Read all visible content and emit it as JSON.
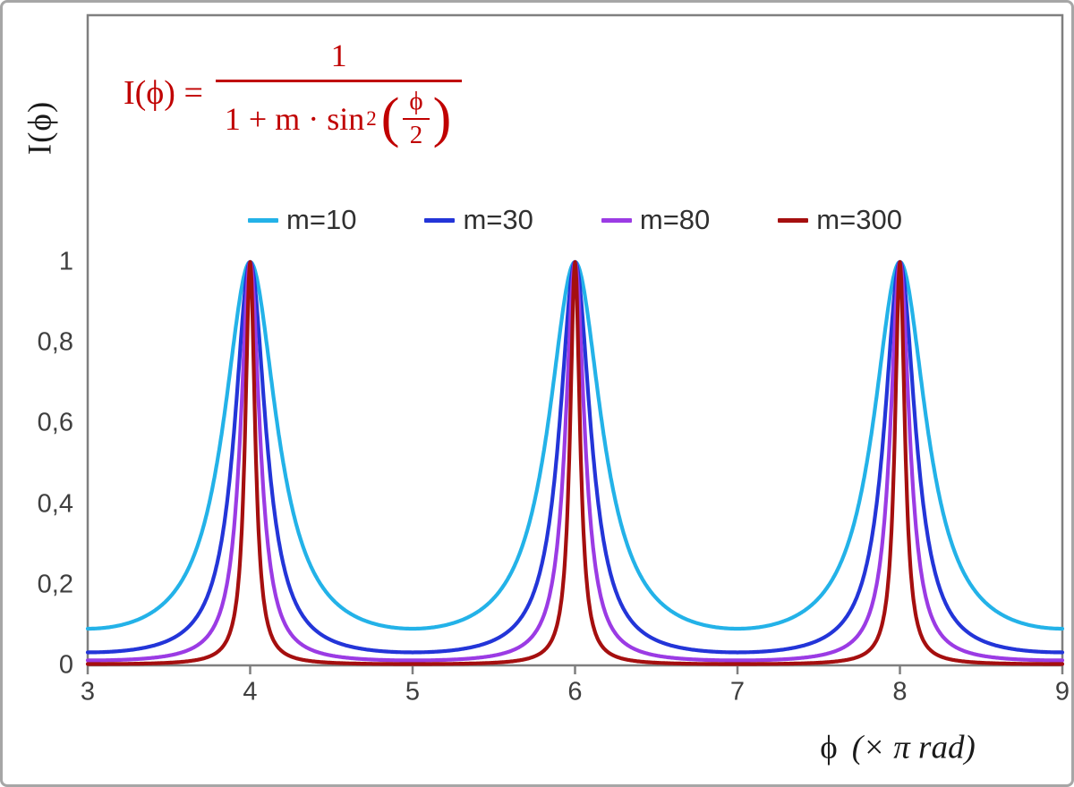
{
  "axes_color": "#7f7f7f",
  "formula": {
    "full_text": "I(ϕ) = 1 / (1 + m·sin²(ϕ/2))",
    "lhs": "I(ϕ) =",
    "numerator": "1",
    "denominator_prefix": "1 + m · sin",
    "exponent": "2",
    "open_paren": "(",
    "inner_numerator": "ϕ",
    "inner_denominator": "2",
    "close_paren": ")",
    "color": "#c00000"
  },
  "chart_data": {
    "type": "line",
    "function": "I(phi) = 1 / (1 + m * sin^2(phi/2)), phi in units of pi rad",
    "x_range": [
      3,
      9
    ],
    "y_axis_labeled_range": [
      0,
      1
    ],
    "x_ticks": [
      3,
      4,
      5,
      6,
      7,
      8,
      9
    ],
    "x_tick_labels": [
      "3",
      "4",
      "5",
      "6",
      "7",
      "8",
      "9"
    ],
    "y_ticks": [
      0,
      0.2,
      0.4,
      0.6,
      0.8,
      1
    ],
    "y_tick_labels": [
      "0",
      "0,2",
      "0,4",
      "0,6",
      "0,8",
      "1"
    ],
    "xlabel": {
      "symbol": "ϕ",
      "units": "(× π rad)"
    },
    "ylabel": "I(ϕ)",
    "legend_position": "top-center",
    "grid": false,
    "peaks_at_x": [
      4,
      6,
      8
    ],
    "peak_value": 1,
    "series": [
      {
        "name": "m=10",
        "m": 10,
        "color": "#23b2e8",
        "min_value": 0.091
      },
      {
        "name": "m=30",
        "m": 30,
        "color": "#2335d8",
        "min_value": 0.032
      },
      {
        "name": "m=80",
        "m": 80,
        "color": "#9b3be4",
        "min_value": 0.012
      },
      {
        "name": "m=300",
        "m": 300,
        "color": "#a50f0f",
        "min_value": 0.003
      }
    ]
  }
}
